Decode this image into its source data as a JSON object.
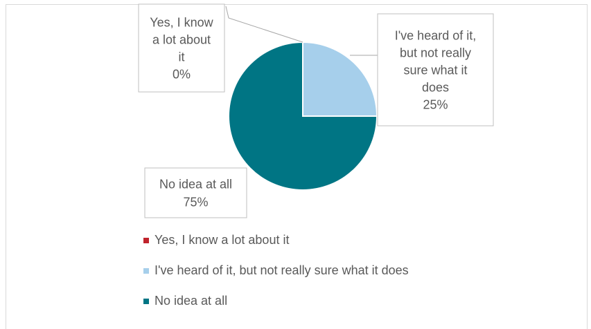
{
  "chart_data": {
    "type": "pie",
    "title": "",
    "categories": [
      "Yes, I know a lot about it",
      "I've heard of it, but not really sure what it does",
      "No idea at all"
    ],
    "values": [
      0,
      25,
      75
    ],
    "value_labels": [
      "0%",
      "25%",
      "75%"
    ],
    "callout_lines": [
      [
        "Yes, I know",
        "a lot about",
        "it"
      ],
      [
        "I've heard of it,",
        "but not really",
        "sure what it",
        "does"
      ],
      [
        "No idea at all"
      ]
    ],
    "colors": [
      "#c0232c",
      "#a6cfeb",
      "#007584"
    ],
    "legend_position": "bottom"
  }
}
